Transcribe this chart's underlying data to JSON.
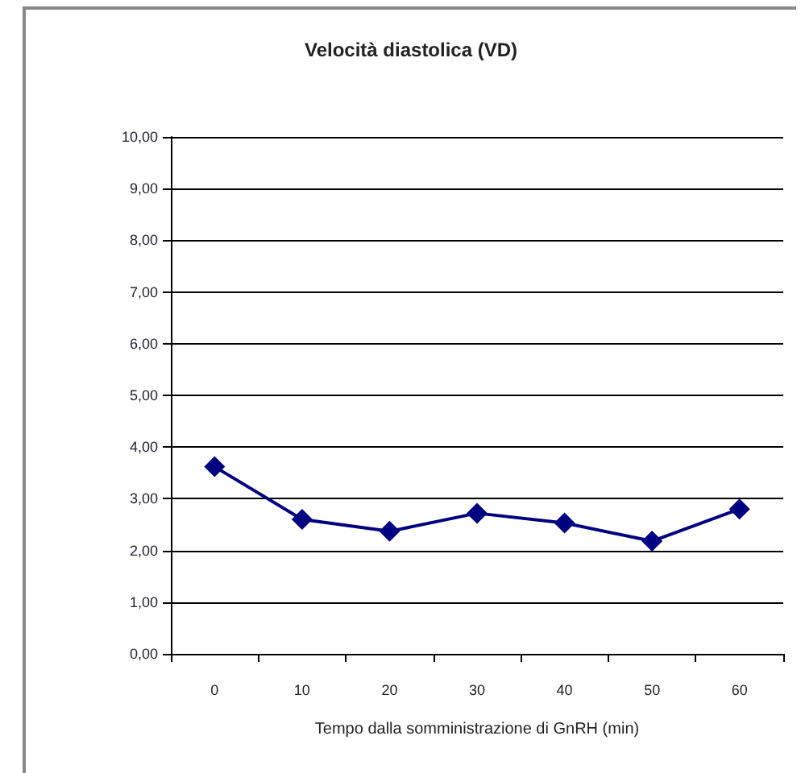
{
  "chart_data": {
    "type": "line",
    "title": "Velocità diastolica (VD)",
    "xlabel": "Tempo dalla somministrazione di GnRH (min)",
    "categories": [
      "0",
      "10",
      "20",
      "30",
      "40",
      "50",
      "60"
    ],
    "series": [
      {
        "color": "#000080",
        "values": [
          3.62,
          2.6,
          2.37,
          2.72,
          2.53,
          2.18,
          2.8
        ]
      }
    ],
    "ylim": [
      0,
      10
    ],
    "yticks": [
      {
        "value": 0,
        "label": "0,00"
      },
      {
        "value": 1,
        "label": "1,00"
      },
      {
        "value": 2,
        "label": "2,00"
      },
      {
        "value": 3,
        "label": "3,00"
      },
      {
        "value": 4,
        "label": "4,00"
      },
      {
        "value": 5,
        "label": "5,00"
      },
      {
        "value": 6,
        "label": "6,00"
      },
      {
        "value": 7,
        "label": "7,00"
      },
      {
        "value": 8,
        "label": "8,00"
      },
      {
        "value": 9,
        "label": "9,00"
      },
      {
        "value": 10,
        "label": "10,00"
      }
    ],
    "grid": "y",
    "marker": "diamond",
    "line_style": "solid"
  }
}
